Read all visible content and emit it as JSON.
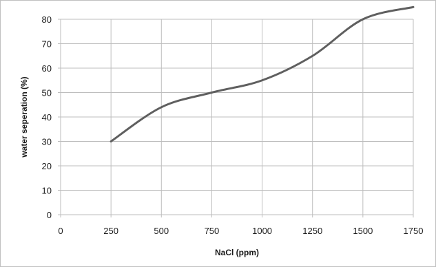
{
  "chart_data": {
    "type": "line",
    "title": "",
    "xlabel": "NaCl (ppm)",
    "ylabel": "water seperation (%)",
    "xlim": [
      0,
      1750
    ],
    "ylim": [
      0,
      80
    ],
    "x_ticks": [
      0,
      250,
      500,
      750,
      1000,
      1250,
      1500,
      1750
    ],
    "y_ticks": [
      0,
      10,
      20,
      30,
      40,
      50,
      60,
      70,
      80
    ],
    "grid": true,
    "legend": "none",
    "series": [
      {
        "color": "#5f5f5f",
        "smooth": true,
        "x": [
          250,
          500,
          750,
          1000,
          1250,
          1500,
          1750
        ],
        "values": [
          30,
          44,
          50,
          55,
          65,
          80,
          85
        ]
      }
    ]
  }
}
